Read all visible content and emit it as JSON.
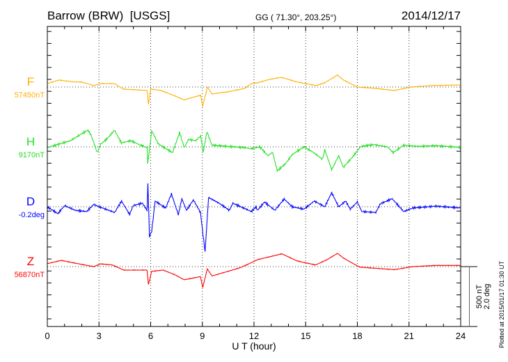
{
  "chart_data": {
    "type": "line",
    "title": "Barrow (BRW)  [USGS]",
    "subtitle": "GG ( 71.30°, 203.25°)",
    "date": "2014/12/17",
    "xlabel": "U T (hour)",
    "xlim": [
      0,
      24
    ],
    "xticks": [
      "0",
      "3",
      "6",
      "9",
      "12",
      "15",
      "18",
      "21",
      "24"
    ],
    "scale_labels": [
      "500 nT",
      "2.0 deg"
    ],
    "plotted_note": "Plotted at 2015/01/17 01:30 UT",
    "grid": true,
    "series": [
      {
        "name": "F",
        "baseline_label": "57450nT",
        "unit": "nT",
        "color": "#ffb000",
        "points": [
          [
            0,
            29
          ],
          [
            0.67,
            58
          ],
          [
            1.6,
            42
          ],
          [
            2.0,
            42
          ],
          [
            2.7,
            12
          ],
          [
            3.1,
            29
          ],
          [
            3.9,
            29
          ],
          [
            4.4,
            -17
          ],
          [
            5.8,
            -29
          ],
          [
            5.87,
            -145
          ],
          [
            6.0,
            -17
          ],
          [
            6.6,
            -29
          ],
          [
            7.3,
            -68
          ],
          [
            7.95,
            -107
          ],
          [
            8.9,
            -68
          ],
          [
            9.02,
            -163
          ],
          [
            9.3,
            0
          ],
          [
            9.56,
            -58
          ],
          [
            10.5,
            -40
          ],
          [
            11.45,
            -12
          ],
          [
            11.85,
            29
          ],
          [
            12.2,
            35
          ],
          [
            12.9,
            64
          ],
          [
            13.6,
            81
          ],
          [
            14.5,
            42
          ],
          [
            15.6,
            12
          ],
          [
            16.1,
            35
          ],
          [
            16.85,
            100
          ],
          [
            17.2,
            58
          ],
          [
            18.0,
            0
          ],
          [
            19.1,
            -12
          ],
          [
            20.15,
            -29
          ],
          [
            21.1,
            0
          ],
          [
            22.3,
            12
          ],
          [
            24,
            17
          ]
        ]
      },
      {
        "name": "H",
        "baseline_label": "9170nT",
        "unit": "nT",
        "color": "#22e022",
        "points": [
          [
            0,
            -6
          ],
          [
            0.67,
            23
          ],
          [
            1.35,
            52
          ],
          [
            2.0,
            110
          ],
          [
            2.36,
            140
          ],
          [
            2.56,
            91
          ],
          [
            2.9,
            -48
          ],
          [
            3.1,
            23
          ],
          [
            3.5,
            72
          ],
          [
            3.9,
            140
          ],
          [
            4.3,
            33
          ],
          [
            4.85,
            52
          ],
          [
            5.4,
            14
          ],
          [
            5.8,
            -6
          ],
          [
            5.83,
            -142
          ],
          [
            6.06,
            134
          ],
          [
            6.46,
            23
          ],
          [
            7.27,
            -48
          ],
          [
            7.68,
            120
          ],
          [
            7.95,
            -6
          ],
          [
            8.2,
            62
          ],
          [
            8.62,
            52
          ],
          [
            8.9,
            91
          ],
          [
            9.05,
            -45
          ],
          [
            9.27,
            126
          ],
          [
            9.56,
            14
          ],
          [
            10.5,
            4
          ],
          [
            11.45,
            -6
          ],
          [
            11.8,
            -16
          ],
          [
            12.34,
            0
          ],
          [
            12.81,
            -74
          ],
          [
            13.08,
            -45
          ],
          [
            13.35,
            -200
          ],
          [
            13.82,
            -142
          ],
          [
            14.22,
            -64
          ],
          [
            14.9,
            0
          ],
          [
            15.44,
            -45
          ],
          [
            15.97,
            -103
          ],
          [
            16.11,
            -25
          ],
          [
            16.51,
            -190
          ],
          [
            16.92,
            -74
          ],
          [
            17.19,
            -171
          ],
          [
            17.73,
            -83
          ],
          [
            18.2,
            4
          ],
          [
            18.94,
            19
          ],
          [
            19.75,
            0
          ],
          [
            20.08,
            -48
          ],
          [
            20.69,
            14
          ],
          [
            21.5,
            4
          ],
          [
            22.57,
            10
          ],
          [
            24,
            -4
          ]
        ]
      },
      {
        "name": "D",
        "baseline_label": "-0.2deg",
        "unit": "deg",
        "color": "#0000ff",
        "points": [
          [
            0,
            0
          ],
          [
            0.61,
            -0.23
          ],
          [
            1.01,
            0.04
          ],
          [
            1.62,
            -0.12
          ],
          [
            2.29,
            -0.16
          ],
          [
            2.69,
            0.08
          ],
          [
            3.1,
            -0.02
          ],
          [
            3.91,
            -0.19
          ],
          [
            4.31,
            0.19
          ],
          [
            4.78,
            -0.26
          ],
          [
            4.98,
            0.04
          ],
          [
            5.52,
            0.12
          ],
          [
            5.79,
            -0.12
          ],
          [
            5.84,
            0.78
          ],
          [
            5.93,
            -1.01
          ],
          [
            6.06,
            -0.81
          ],
          [
            6.26,
            0.19
          ],
          [
            6.87,
            -0.04
          ],
          [
            7.21,
            0.43
          ],
          [
            7.61,
            -0.27
          ],
          [
            7.81,
            0.27
          ],
          [
            8.08,
            -0.12
          ],
          [
            8.48,
            0.23
          ],
          [
            8.89,
            -0.19
          ],
          [
            9.16,
            -1.51
          ],
          [
            9.36,
            0.31
          ],
          [
            9.97,
            0.12
          ],
          [
            10.57,
            -0.12
          ],
          [
            10.77,
            0.12
          ],
          [
            11.85,
            -0.16
          ],
          [
            12.12,
            0
          ],
          [
            12.2,
            -0.12
          ],
          [
            12.61,
            0.16
          ],
          [
            13.21,
            -0.12
          ],
          [
            13.75,
            0.26
          ],
          [
            14.22,
            0
          ],
          [
            14.9,
            -0.08
          ],
          [
            15.5,
            0.19
          ],
          [
            16.11,
            0
          ],
          [
            16.51,
            0.47
          ],
          [
            16.92,
            0
          ],
          [
            17.32,
            0.19
          ],
          [
            17.59,
            -0.08
          ],
          [
            18.0,
            0.16
          ],
          [
            18.26,
            -0.16
          ],
          [
            19.07,
            -0.19
          ],
          [
            19.34,
            0.1
          ],
          [
            20.02,
            0.27
          ],
          [
            20.69,
            -0.16
          ],
          [
            21.23,
            -0.04
          ],
          [
            22.57,
            0.02
          ],
          [
            24,
            -0.04
          ]
        ]
      },
      {
        "name": "Z",
        "baseline_label": "56870nT",
        "unit": "nT",
        "color": "#ff0000",
        "points": [
          [
            0,
            25
          ],
          [
            0.81,
            52
          ],
          [
            1.62,
            29
          ],
          [
            2.69,
            0
          ],
          [
            3.1,
            23
          ],
          [
            3.77,
            14
          ],
          [
            4.44,
            -29
          ],
          [
            5.79,
            -29
          ],
          [
            5.87,
            -150
          ],
          [
            6.06,
            -39
          ],
          [
            6.73,
            -29
          ],
          [
            7.41,
            -68
          ],
          [
            7.95,
            -110
          ],
          [
            8.89,
            -83
          ],
          [
            9.02,
            -175
          ],
          [
            9.29,
            -19
          ],
          [
            9.56,
            -78
          ],
          [
            10.5,
            -39
          ],
          [
            11.18,
            -10
          ],
          [
            11.85,
            33
          ],
          [
            12.2,
            58
          ],
          [
            13.62,
            107
          ],
          [
            14.49,
            48
          ],
          [
            15.57,
            14
          ],
          [
            16.24,
            58
          ],
          [
            16.85,
            111
          ],
          [
            17.19,
            72
          ],
          [
            18.13,
            -4
          ],
          [
            19.07,
            -14
          ],
          [
            20.15,
            -25
          ],
          [
            21.23,
            0
          ],
          [
            22.57,
            10
          ],
          [
            24,
            10
          ]
        ]
      }
    ]
  }
}
